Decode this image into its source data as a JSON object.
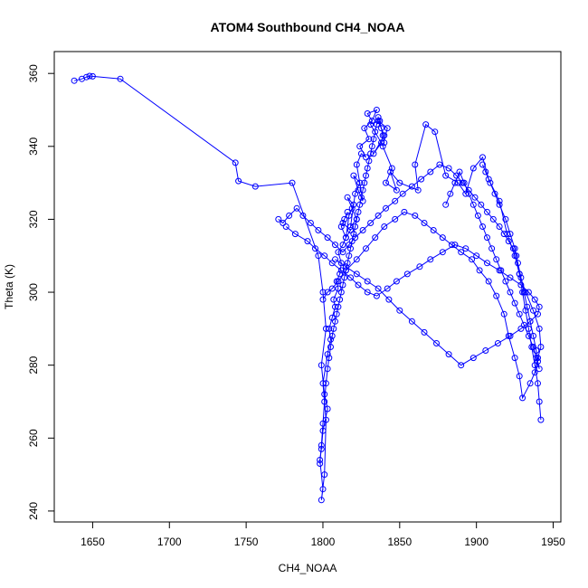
{
  "chart_data": {
    "type": "scatter",
    "title": "ATOM4 Southbound CH4_NOAA",
    "xlabel": "CH4_NOAA",
    "ylabel": "Theta (K)",
    "xlim": [
      1625,
      1955
    ],
    "ylim": [
      237,
      366
    ],
    "xticks": [
      1650,
      1700,
      1750,
      1800,
      1850,
      1900,
      1950
    ],
    "yticks": [
      240,
      260,
      280,
      300,
      320,
      340,
      360
    ],
    "grid": false,
    "legend": "none",
    "color": "#0000ff",
    "series": [
      {
        "x": [
          1638,
          1643,
          1646,
          1648,
          1650,
          1668,
          1743,
          1745,
          1756,
          1780,
          1797,
          1800,
          1802,
          1799,
          1801,
          1803,
          1800,
          1799,
          1798,
          1800,
          1799,
          1801,
          1802,
          1800,
          1803,
          1805,
          1804,
          1806,
          1808,
          1807,
          1810,
          1809,
          1811,
          1812,
          1810,
          1813,
          1815,
          1812,
          1814,
          1816,
          1813,
          1818,
          1815,
          1817,
          1820,
          1816,
          1819,
          1822,
          1818,
          1821,
          1824,
          1820,
          1823,
          1826,
          1822,
          1825,
          1828,
          1824,
          1830,
          1827,
          1832,
          1829,
          1835,
          1831,
          1838,
          1833,
          1840,
          1836,
          1842,
          1839,
          1845,
          1841,
          1848,
          1844,
          1850,
          1862,
          1860,
          1867,
          1873,
          1880,
          1888,
          1893,
          1898,
          1904,
          1908,
          1915,
          1920,
          1925,
          1928,
          1932,
          1937,
          1941,
          1942,
          1940,
          1938,
          1935,
          1930,
          1928,
          1925,
          1921,
          1918,
          1913,
          1908,
          1902,
          1897,
          1890,
          1884,
          1878,
          1872,
          1866,
          1860,
          1853,
          1847,
          1840,
          1834,
          1828,
          1822,
          1815,
          1810,
          1806,
          1803,
          1800
        ],
        "y": [
          358,
          358.5,
          359,
          359.3,
          359.2,
          358.5,
          335.5,
          330.5,
          329,
          330,
          310,
          300,
          290,
          280,
          272,
          268,
          262,
          257,
          254,
          246,
          243,
          250,
          265,
          275,
          283,
          287,
          290,
          293,
          296,
          298,
          301,
          303,
          305,
          308,
          311,
          313,
          315,
          318,
          320,
          322,
          319,
          317,
          315,
          321,
          324,
          326,
          323,
          320,
          318,
          327,
          330,
          332,
          328,
          325,
          335,
          338,
          337,
          340,
          342,
          345,
          347,
          349,
          350,
          346,
          341,
          338,
          343,
          347,
          345,
          340,
          334,
          330,
          328,
          333,
          330,
          328,
          335,
          346,
          344,
          332,
          330,
          327,
          334,
          337,
          331,
          325,
          316,
          310,
          305,
          300,
          295,
          290,
          285,
          282,
          278,
          275,
          271,
          277,
          282,
          288,
          294,
          299,
          303,
          306,
          309,
          311,
          313,
          315,
          317,
          319,
          321,
          322,
          320,
          318,
          315,
          312,
          309,
          306,
          303,
          301,
          300,
          298
        ]
      },
      {
        "x": [
          1776,
          1782,
          1790,
          1795,
          1801,
          1806,
          1812,
          1818,
          1823,
          1829,
          1835,
          1842,
          1848,
          1855,
          1863,
          1870,
          1878,
          1886,
          1893,
          1900,
          1907,
          1915,
          1922,
          1929,
          1934,
          1938,
          1941,
          1940,
          1935,
          1929,
          1922,
          1914,
          1906,
          1898,
          1890,
          1882,
          1874,
          1866,
          1858,
          1850,
          1843,
          1836,
          1829,
          1822,
          1815,
          1808
        ],
        "y": [
          318,
          316,
          314,
          312,
          310,
          308,
          306,
          304,
          302,
          300,
          299,
          301,
          303,
          305,
          307,
          309,
          311,
          313,
          312,
          310,
          308,
          306,
          304,
          302,
          300,
          298,
          296,
          294,
          292,
          290,
          288,
          286,
          284,
          282,
          280,
          283,
          286,
          289,
          292,
          295,
          298,
          301,
          303,
          305,
          307,
          309
        ]
      },
      {
        "x": [
          1771,
          1774,
          1778,
          1783,
          1787,
          1792,
          1797,
          1803,
          1808,
          1813,
          1817,
          1821,
          1826,
          1831,
          1836,
          1841,
          1847,
          1852,
          1858,
          1864,
          1870,
          1876,
          1882,
          1887,
          1891,
          1895,
          1899,
          1903,
          1907,
          1911,
          1915,
          1918,
          1921,
          1924,
          1926,
          1928,
          1930,
          1932,
          1934,
          1936,
          1938,
          1940,
          1941,
          1942
        ],
        "y": [
          320,
          319,
          321,
          323,
          321,
          319,
          317,
          315,
          313,
          311,
          313,
          315,
          317,
          319,
          321,
          323,
          325,
          327,
          329,
          331,
          333,
          335,
          334,
          332,
          330,
          328,
          326,
          324,
          322,
          320,
          318,
          316,
          314,
          312,
          310,
          305,
          300,
          295,
          290,
          285,
          280,
          275,
          270,
          265
        ]
      },
      {
        "x": [
          1798,
          1799,
          1800,
          1801,
          1802,
          1803,
          1804,
          1805,
          1806,
          1807,
          1808,
          1809,
          1810,
          1811,
          1812,
          1813,
          1814,
          1815,
          1816,
          1817,
          1818,
          1819,
          1820,
          1821,
          1822,
          1823,
          1824,
          1825,
          1826,
          1827,
          1828,
          1829,
          1830,
          1831,
          1832,
          1833,
          1834,
          1835,
          1836,
          1837,
          1838,
          1839,
          1840
        ],
        "y": [
          253,
          258,
          264,
          270,
          275,
          279,
          282,
          285,
          288,
          290,
          292,
          294,
          296,
          298,
          300,
          302,
          304,
          306,
          308,
          310,
          312,
          314,
          316,
          318,
          320,
          322,
          324,
          326,
          328,
          330,
          332,
          334,
          336,
          338,
          340,
          342,
          344,
          346,
          348,
          347,
          345,
          343,
          341
        ]
      },
      {
        "x": [
          1904,
          1906,
          1909,
          1912,
          1915,
          1919,
          1922,
          1925,
          1927,
          1929,
          1931,
          1933,
          1935,
          1937,
          1939,
          1940,
          1941,
          1939,
          1937,
          1934,
          1931,
          1928,
          1925,
          1922,
          1919,
          1916,
          1913,
          1910,
          1907,
          1904,
          1901,
          1898,
          1895,
          1892,
          1889,
          1886,
          1883,
          1880
        ],
        "y": [
          335,
          333,
          330,
          327,
          324,
          320,
          316,
          312,
          308,
          304,
          300,
          296,
          292,
          288,
          284,
          281,
          279,
          282,
          285,
          288,
          291,
          294,
          297,
          300,
          303,
          306,
          309,
          312,
          315,
          318,
          321,
          324,
          327,
          330,
          333,
          330,
          327,
          324
        ]
      }
    ]
  }
}
